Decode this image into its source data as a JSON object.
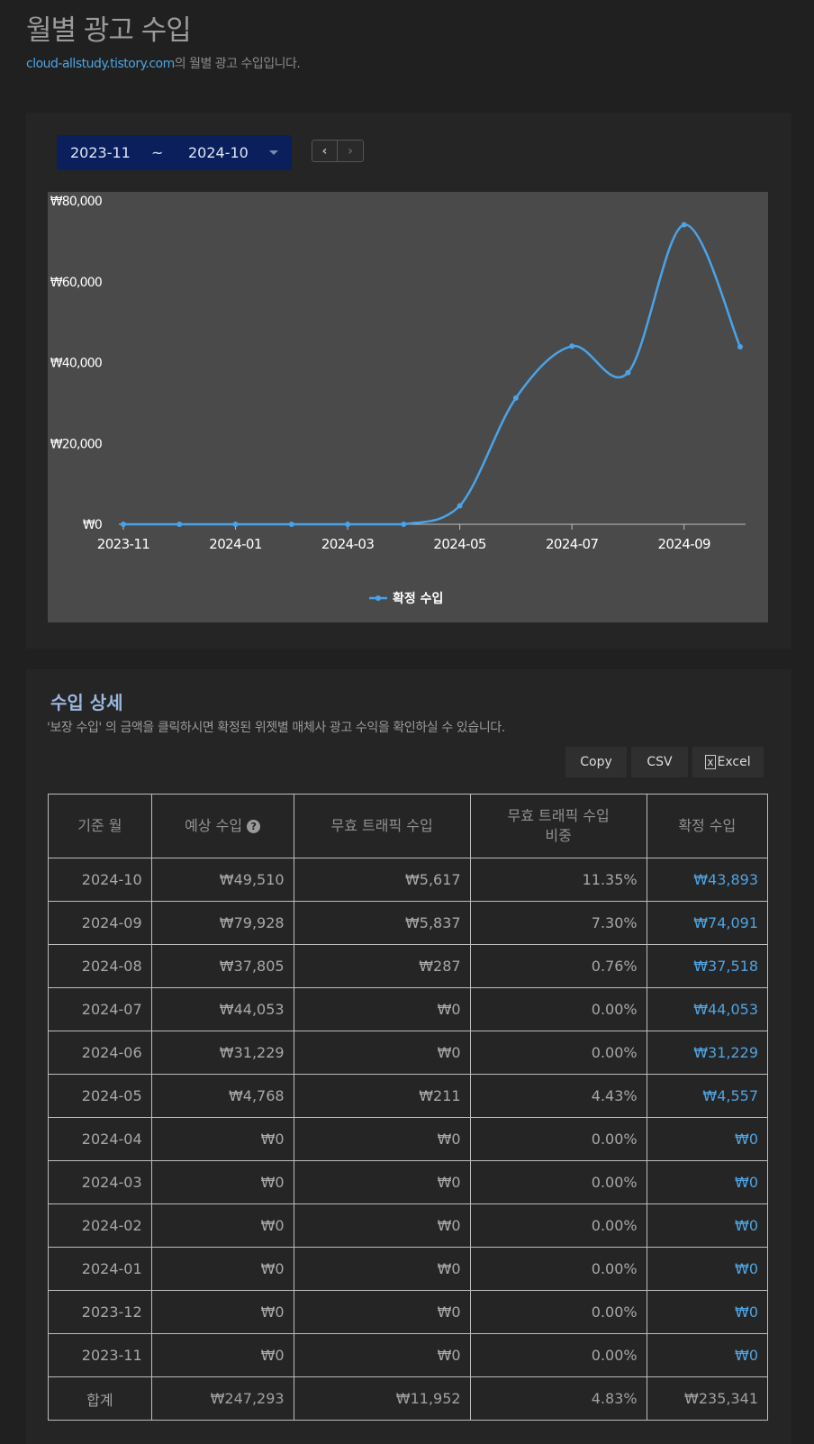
{
  "page": {
    "title": "월별 광고 수입",
    "blog_link": "cloud-allstudy.tistory.com",
    "subtitle_suffix": "의 월별 광고 수입입니다."
  },
  "filter": {
    "from": "2023-11",
    "tilde": "~",
    "to": "2024-10",
    "prev_icon": "chevron-left-icon",
    "next_icon": "chevron-right-icon"
  },
  "chart_data": {
    "type": "line",
    "x": [
      "2023-11",
      "2023-12",
      "2024-01",
      "2024-02",
      "2024-03",
      "2024-04",
      "2024-05",
      "2024-06",
      "2024-07",
      "2024-08",
      "2024-09",
      "2024-10"
    ],
    "x_tick_labels": [
      "2023-11",
      "2024-01",
      "2024-03",
      "2024-05",
      "2024-07",
      "2024-09"
    ],
    "y_tick_labels": [
      "₩0",
      "₩20,000",
      "₩40,000",
      "₩60,000",
      "₩80,000"
    ],
    "y_ticks": [
      0,
      20000,
      40000,
      60000,
      80000
    ],
    "ylim": [
      0,
      80000
    ],
    "series": [
      {
        "name": "확정 수입",
        "color": "#4aa3e8",
        "values": [
          0,
          0,
          0,
          0,
          0,
          0,
          4557,
          31229,
          44053,
          37518,
          74091,
          43893
        ]
      }
    ],
    "legend_position": "bottom-center",
    "grid": false
  },
  "detail": {
    "title": "수입 상세",
    "description": "'보장 수입' 의 금액을 클릭하시면 확정된 위젯별 매체사 광고 수익을 확인하실 수 있습니다.",
    "buttons": {
      "copy": "Copy",
      "csv": "CSV",
      "excel": "Excel"
    },
    "headers": [
      "기준 월",
      "예상 수입",
      "무효 트래픽 수입",
      "무효 트래픽 수입\n비중",
      "확정 수입"
    ],
    "help_glyph": "?",
    "rows": [
      [
        "2024-10",
        "₩49,510",
        "₩5,617",
        "11.35%",
        "₩43,893"
      ],
      [
        "2024-09",
        "₩79,928",
        "₩5,837",
        "7.30%",
        "₩74,091"
      ],
      [
        "2024-08",
        "₩37,805",
        "₩287",
        "0.76%",
        "₩37,518"
      ],
      [
        "2024-07",
        "₩44,053",
        "₩0",
        "0.00%",
        "₩44,053"
      ],
      [
        "2024-06",
        "₩31,229",
        "₩0",
        "0.00%",
        "₩31,229"
      ],
      [
        "2024-05",
        "₩4,768",
        "₩211",
        "4.43%",
        "₩4,557"
      ],
      [
        "2024-04",
        "₩0",
        "₩0",
        "0.00%",
        "₩0"
      ],
      [
        "2024-03",
        "₩0",
        "₩0",
        "0.00%",
        "₩0"
      ],
      [
        "2024-02",
        "₩0",
        "₩0",
        "0.00%",
        "₩0"
      ],
      [
        "2024-01",
        "₩0",
        "₩0",
        "0.00%",
        "₩0"
      ],
      [
        "2023-12",
        "₩0",
        "₩0",
        "0.00%",
        "₩0"
      ],
      [
        "2023-11",
        "₩0",
        "₩0",
        "0.00%",
        "₩0"
      ]
    ],
    "total": [
      "합계",
      "₩247,293",
      "₩11,952",
      "4.83%",
      "₩235,341"
    ]
  }
}
